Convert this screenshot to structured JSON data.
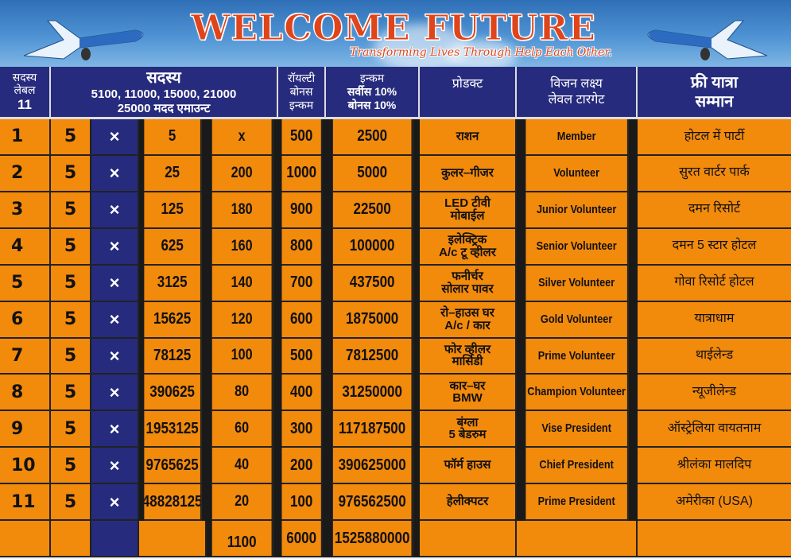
{
  "banner": {
    "title": "WELCOME FUTURE",
    "tagline": "Transforming Lives Through Help Each Other.",
    "icons": [
      "airplane-left",
      "airplane-right"
    ]
  },
  "colors": {
    "header_bg": "#272b7d",
    "cell_bg": "#f28a0c",
    "title": "#e0441a",
    "sky": "#4f93d4"
  },
  "header": {
    "level": [
      "सदस्य",
      "लेबल",
      "11"
    ],
    "member_title": "सदस्य",
    "member_amounts": "5100, 11000, 15000, 21000",
    "member_help": "25000 मदद एमाउन्ट",
    "royalty": [
      "रॉयल्टी",
      "बोनस",
      "इन्कम"
    ],
    "income": [
      "इन्कम",
      "सर्वीस 10%",
      "बोनस 10%"
    ],
    "product": "प्रोडक्ट",
    "target": [
      "विजन लक्ष्य",
      "लेवल टारगेट"
    ],
    "trip": [
      "फ्री यात्रा",
      "सम्मान"
    ]
  },
  "rows": [
    {
      "level": "1",
      "mult": "5",
      "x": "×",
      "members": "5",
      "c5": "x",
      "royalty": "500",
      "income": "2500",
      "product": [
        "राशन"
      ],
      "target": "Member",
      "trip": "होटल में पार्टी"
    },
    {
      "level": "2",
      "mult": "5",
      "x": "×",
      "members": "25",
      "c5": "200",
      "royalty": "1000",
      "income": "5000",
      "product": [
        "कुलर–गीजर"
      ],
      "target": "Volunteer",
      "trip": "सुरत वार्टर पार्क"
    },
    {
      "level": "3",
      "mult": "5",
      "x": "×",
      "members": "125",
      "c5": "180",
      "royalty": "900",
      "income": "22500",
      "product": [
        "LED टीवी",
        "मोबाईल"
      ],
      "target": "Junior Volunteer",
      "trip": "दमन रिसोर्ट"
    },
    {
      "level": "4",
      "mult": "5",
      "x": "×",
      "members": "625",
      "c5": "160",
      "royalty": "800",
      "income": "100000",
      "product": [
        "इलेक्ट्रिक",
        "A/c टू व्हीलर"
      ],
      "target": "Senior Volunteer",
      "trip": "दमन 5 स्टार होटल"
    },
    {
      "level": "5",
      "mult": "5",
      "x": "×",
      "members": "3125",
      "c5": "140",
      "royalty": "700",
      "income": "437500",
      "product": [
        "फनीर्चर",
        "सोलार पावर"
      ],
      "target": "Silver Volunteer",
      "trip": "गोवा रिसोर्ट होटल"
    },
    {
      "level": "6",
      "mult": "5",
      "x": "×",
      "members": "15625",
      "c5": "120",
      "royalty": "600",
      "income": "1875000",
      "product": [
        "रो–हाउस घर",
        "A/c / कार"
      ],
      "target": "Gold Volunteer",
      "trip": "यात्राधाम"
    },
    {
      "level": "7",
      "mult": "5",
      "x": "×",
      "members": "78125",
      "c5": "100",
      "royalty": "500",
      "income": "7812500",
      "product": [
        "फोर व्हीलर",
        "मार्सिडी"
      ],
      "target": "Prime Volunteer",
      "trip": "थाईलेन्ड"
    },
    {
      "level": "8",
      "mult": "5",
      "x": "×",
      "members": "390625",
      "c5": "80",
      "royalty": "400",
      "income": "31250000",
      "product": [
        "कार–घर",
        "BMW"
      ],
      "target": "Champion Volunteer",
      "trip": "न्यूजीलेन्ड"
    },
    {
      "level": "9",
      "mult": "5",
      "x": "×",
      "members": "1953125",
      "c5": "60",
      "royalty": "300",
      "income": "117187500",
      "product": [
        "बंग्ला",
        "5 बेडरुम"
      ],
      "target": "Vise President",
      "trip": "ऑस्ट्रेलिया वायतनाम"
    },
    {
      "level": "10",
      "mult": "5",
      "x": "×",
      "members": "9765625",
      "c5": "40",
      "royalty": "200",
      "income": "390625000",
      "product": [
        "फॉर्म हाउस"
      ],
      "target": "Chief President",
      "trip": "श्रीलंका मालदिप"
    },
    {
      "level": "11",
      "mult": "5",
      "x": "×",
      "members": "48828125",
      "c5": "20",
      "royalty": "100",
      "income": "976562500",
      "product": [
        "हेलीक्पटर"
      ],
      "target": "Prime President",
      "trip": "अमेरीका (USA)"
    }
  ],
  "totals": {
    "c5": "1100",
    "royalty": "6000",
    "income": "1525880000"
  }
}
